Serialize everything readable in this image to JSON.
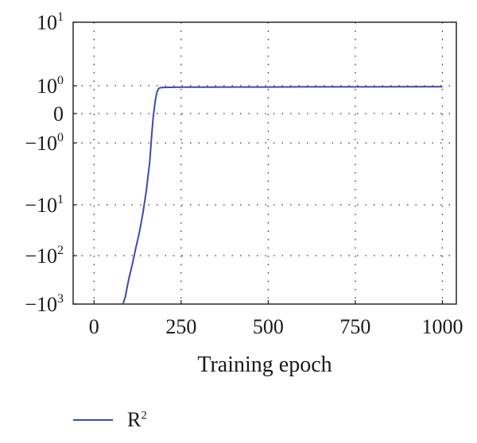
{
  "chart_data": {
    "type": "line",
    "xlabel": "Training epoch",
    "xlim": [
      -60,
      1040
    ],
    "x_ticks": [
      0,
      250,
      500,
      750,
      1000
    ],
    "x_tick_labels": [
      "0",
      "250",
      "500",
      "750",
      "1000"
    ],
    "y_scale": "symmetric-log",
    "ylim": [
      -1000,
      10
    ],
    "y_ticks": [
      10,
      1,
      0,
      -1,
      -10,
      -100,
      -1000
    ],
    "y_tick_labels": [
      {
        "base": "10",
        "sup": "1"
      },
      {
        "base": "10",
        "sup": "0"
      },
      {
        "base": "0",
        "sup": ""
      },
      {
        "base": "−10",
        "sup": "0"
      },
      {
        "base": "−10",
        "sup": "1"
      },
      {
        "base": "−10",
        "sup": "2"
      },
      {
        "base": "−10",
        "sup": "3"
      }
    ],
    "grid": true,
    "legend_position": "bottom-left",
    "series": [
      {
        "name": "R",
        "name_sup": "2",
        "color": "#3a4da8",
        "x": [
          83,
          90,
          95,
          100,
          110,
          120,
          130,
          140,
          150,
          160,
          165,
          170,
          175,
          180,
          185,
          190,
          200,
          250,
          300,
          400,
          500,
          600,
          700,
          800,
          900,
          1000
        ],
        "y": [
          -1000,
          -700,
          -450,
          -300,
          -150,
          -70,
          -35,
          -15,
          -6,
          -2,
          -0.8,
          -0.1,
          0.4,
          0.75,
          0.9,
          0.93,
          0.94,
          0.95,
          0.95,
          0.955,
          0.955,
          0.96,
          0.96,
          0.96,
          0.965,
          0.965
        ]
      }
    ]
  }
}
